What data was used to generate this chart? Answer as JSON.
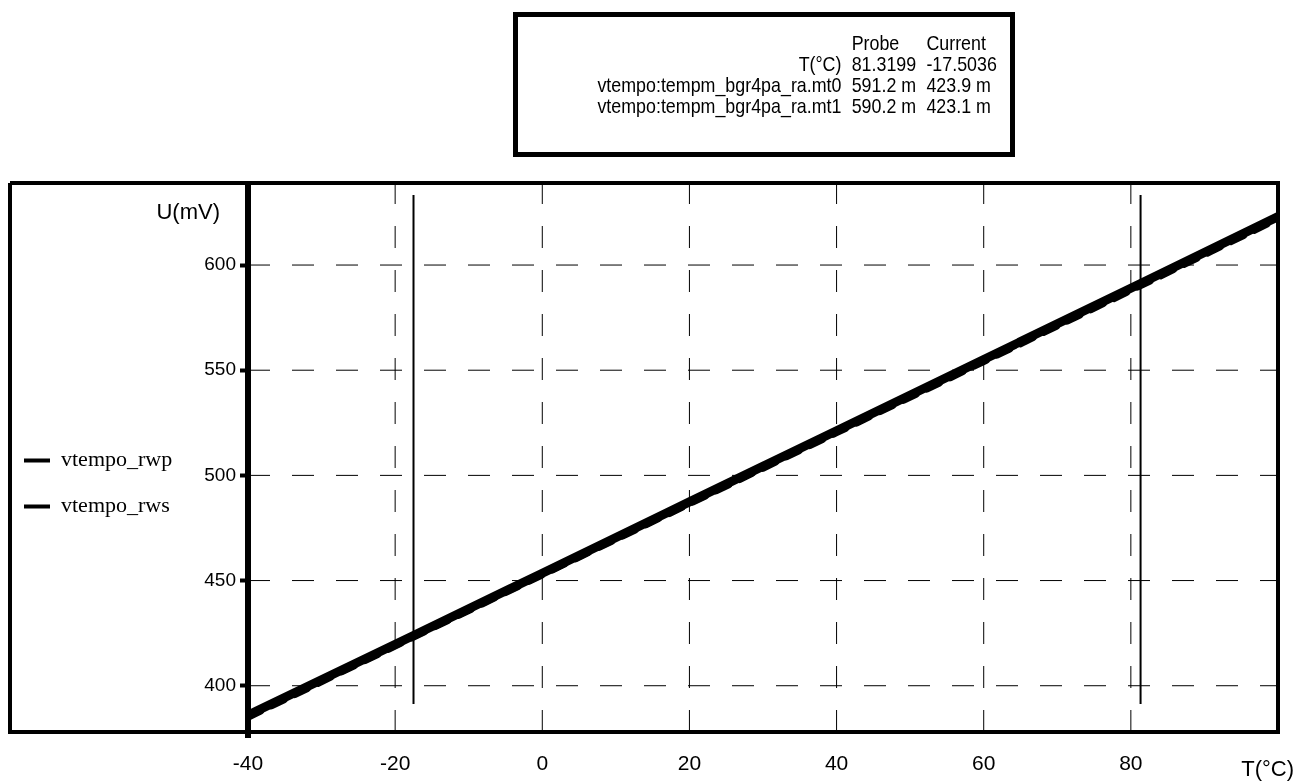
{
  "chart_data": {
    "type": "line",
    "xlabel": "T(°C)",
    "ylabel": "U(mV)",
    "x": [
      -40,
      -17.5036,
      0,
      20,
      40,
      60,
      81.3199,
      100
    ],
    "series": [
      {
        "name": "vtempo_rwp",
        "color": "#000000",
        "line_style": "solid",
        "values": [
          386,
          423.9,
          453.5,
          487.4,
          521.2,
          555.1,
          591.2,
          623
        ]
      },
      {
        "name": "vtempo_rws",
        "color": "#000000",
        "line_style": "dashed",
        "values": [
          385,
          423.1,
          452.7,
          486.5,
          520.3,
          554.1,
          590.2,
          622
        ]
      }
    ],
    "xlim": [
      -40,
      100
    ],
    "xticks": [
      -40,
      -20,
      0,
      20,
      40,
      60,
      80
    ],
    "ylim": [
      378,
      639
    ],
    "yticks": [
      400,
      450,
      500,
      550,
      600
    ],
    "grid": true,
    "legend": "left",
    "marker": "none",
    "ref_lines": [
      {
        "axis": "x",
        "value": -17.5036,
        "color": "#000000"
      },
      {
        "axis": "x",
        "value": 81.3199,
        "color": "#000000"
      }
    ],
    "annotations": [
      "Probe",
      "Current",
      "T(°C)",
      "81.3199",
      "-17.5036",
      "vtempo:tempm_bgr4pa_ra.mt0",
      "591.2 m",
      "423.9 m",
      "vtempo:tempm_bgr4pa_ra.mt1",
      "590.2 m",
      "423.1 m"
    ]
  }
}
